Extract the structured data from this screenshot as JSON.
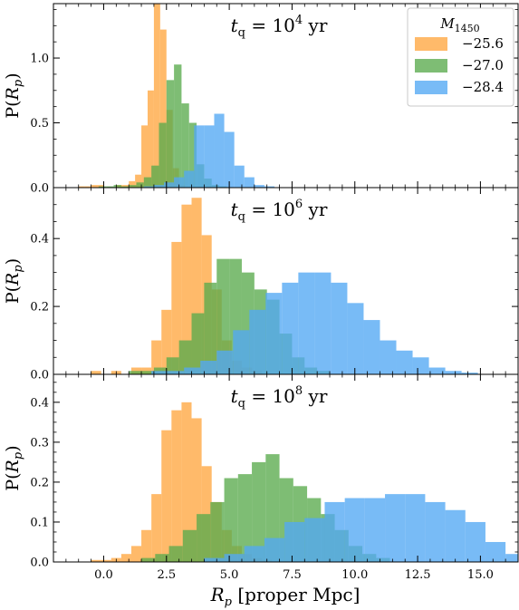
{
  "chart_data": {
    "type": "bar",
    "shared_xlabel": "R_p [proper Mpc]",
    "shared_xlabel_parts": {
      "var": "R",
      "sub": "p",
      "rest": " [proper Mpc]"
    },
    "xlim": [
      -2,
      16.5
    ],
    "xticks": [
      "0.0",
      "2.5",
      "5.0",
      "7.5",
      "10.0",
      "12.5",
      "15.0"
    ],
    "xtick_values": [
      0,
      2.5,
      5,
      7.5,
      10,
      12.5,
      15
    ],
    "ylabel": "P(R_p)",
    "ylabel_parts": {
      "pre": "P(",
      "var": "R",
      "sub": "p",
      "post": ")"
    },
    "legend": {
      "title": "M_1450",
      "title_parts": {
        "var": "M",
        "sub": "1450"
      },
      "entries": [
        {
          "label": "−25.6",
          "color": "#ffa640"
        },
        {
          "label": "−27.0",
          "color": "#5aaa4d"
        },
        {
          "label": "−28.4",
          "color": "#52a8f4"
        }
      ]
    },
    "panels": [
      {
        "title": "t_q = 10^4 yr",
        "title_parts": {
          "var": "t",
          "sub": "q",
          "mid": " = 10",
          "sup": "4",
          "unit": " yr"
        },
        "ylim": [
          0,
          1.42
        ],
        "yticks": [
          "0.0",
          "0.5",
          "1.0"
        ],
        "ytick_values": [
          0,
          0.5,
          1.0
        ],
        "series": [
          {
            "name": "−25.6",
            "color": "#ffa640",
            "bin_start": -1.0,
            "bin_width": 0.25,
            "values": [
              0.01,
              0.01,
              0.02,
              0.02,
              0.0,
              0.0,
              0.02,
              0.02,
              0.05,
              0.1,
              0.48,
              0.75,
              1.42,
              1.22,
              0.6,
              0.15,
              0.02,
              0.0
            ]
          },
          {
            "name": "−27.0",
            "color": "#5aaa4d",
            "bin_start": -0.2,
            "bin_width": 0.3,
            "values": [
              0.01,
              0.01,
              0.02,
              0.01,
              0.02,
              0.04,
              0.08,
              0.17,
              0.5,
              0.83,
              0.95,
              0.65,
              0.5,
              0.18,
              0.07,
              0.02,
              0.01
            ]
          },
          {
            "name": "−28.4",
            "color": "#52a8f4",
            "bin_start": 1.6,
            "bin_width": 0.4,
            "values": [
              0.01,
              0.02,
              0.04,
              0.08,
              0.13,
              0.48,
              0.48,
              0.57,
              0.43,
              0.17,
              0.08,
              0.02,
              0.01
            ]
          }
        ]
      },
      {
        "title": "t_q = 10^6 yr",
        "title_parts": {
          "var": "t",
          "sub": "q",
          "mid": " = 10",
          "sup": "6",
          "unit": " yr"
        },
        "ylim": [
          0,
          0.55
        ],
        "yticks": [
          "0.0",
          "0.2",
          "0.4"
        ],
        "ytick_values": [
          0,
          0.2,
          0.4
        ],
        "series": [
          {
            "name": "−25.6",
            "color": "#ffa640",
            "bin_start": -0.5,
            "bin_width": 0.4,
            "values": [
              0.01,
              0.0,
              0.01,
              0.0,
              0.02,
              0.02,
              0.1,
              0.19,
              0.39,
              0.5,
              0.52,
              0.41,
              0.25,
              0.1,
              0.04,
              0.02,
              0.01,
              0.0
            ]
          },
          {
            "name": "−27.0",
            "color": "#5aaa4d",
            "bin_start": 1.0,
            "bin_width": 0.5,
            "values": [
              0.01,
              0.01,
              0.02,
              0.05,
              0.1,
              0.18,
              0.27,
              0.34,
              0.34,
              0.3,
              0.25,
              0.22,
              0.12,
              0.05,
              0.02,
              0.01
            ]
          },
          {
            "name": "−28.4",
            "color": "#52a8f4",
            "bin_start": 1.9,
            "bin_width": 0.65,
            "values": [
              0.01,
              0.01,
              0.02,
              0.04,
              0.07,
              0.13,
              0.19,
              0.24,
              0.27,
              0.3,
              0.3,
              0.27,
              0.21,
              0.16,
              0.1,
              0.07,
              0.05,
              0.02,
              0.01,
              0.005
            ]
          }
        ]
      },
      {
        "title": "t_q = 10^8 yr",
        "title_parts": {
          "var": "t",
          "sub": "q",
          "mid": " = 10",
          "sup": "8",
          "unit": " yr"
        },
        "ylim": [
          0,
          0.47
        ],
        "yticks": [
          "0.0",
          "0.1",
          "0.2",
          "0.3",
          "0.4"
        ],
        "ytick_values": [
          0,
          0.1,
          0.2,
          0.3,
          0.4
        ],
        "series": [
          {
            "name": "−25.6",
            "color": "#ffa640",
            "bin_start": -0.5,
            "bin_width": 0.4,
            "values": [
              0.005,
              0.005,
              0.01,
              0.02,
              0.04,
              0.08,
              0.17,
              0.33,
              0.38,
              0.4,
              0.36,
              0.24,
              0.15,
              0.08,
              0.04,
              0.02,
              0.01,
              0.005
            ]
          },
          {
            "name": "−27.0",
            "color": "#5aaa4d",
            "bin_start": 1.5,
            "bin_width": 0.55,
            "values": [
              0.01,
              0.02,
              0.04,
              0.08,
              0.12,
              0.15,
              0.21,
              0.22,
              0.25,
              0.27,
              0.21,
              0.19,
              0.16,
              0.12,
              0.08,
              0.04,
              0.02,
              0.01
            ]
          },
          {
            "name": "−28.4",
            "color": "#52a8f4",
            "bin_start": 4.0,
            "bin_width": 0.8,
            "values": [
              0.01,
              0.02,
              0.04,
              0.06,
              0.1,
              0.11,
              0.15,
              0.16,
              0.16,
              0.17,
              0.17,
              0.15,
              0.13,
              0.1,
              0.05,
              0.02
            ]
          }
        ]
      }
    ]
  }
}
